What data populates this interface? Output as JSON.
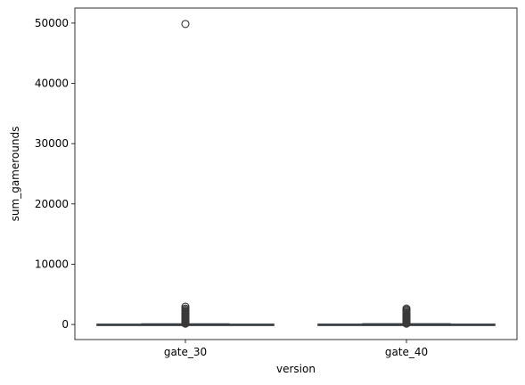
{
  "chart_data": {
    "type": "box",
    "title": "",
    "xlabel": "version",
    "ylabel": "sum_gamerounds",
    "categories": [
      "gate_30",
      "gate_40"
    ],
    "ylim": [
      -2500,
      52500
    ],
    "yticks": [
      0,
      10000,
      20000,
      30000,
      40000,
      50000
    ],
    "grid": false,
    "legend": "none",
    "boxes": [
      {
        "category": "gate_30",
        "q1": 5,
        "median": 17,
        "q3": 50,
        "whisker_low": 0,
        "whisker_high": 118,
        "outliers": [
          49854,
          2961,
          2640,
          2438,
          2251,
          2156,
          2124,
          2063,
          1906,
          1774,
          1700,
          1600,
          1500,
          1400,
          1300,
          1200,
          1100,
          1000,
          900,
          800,
          700,
          600,
          500,
          420,
          350,
          280,
          220,
          170,
          130
        ]
      },
      {
        "category": "gate_40",
        "q1": 5,
        "median": 16,
        "q3": 52,
        "whisker_low": 0,
        "whisker_high": 122,
        "outliers": [
          2640,
          2438,
          2294,
          2100,
          1950,
          1800,
          1650,
          1500,
          1400,
          1300,
          1200,
          1100,
          1000,
          900,
          800,
          700,
          600,
          500,
          420,
          350,
          280,
          220,
          170,
          135
        ]
      }
    ],
    "colors": {
      "box_face": "#1f77b4",
      "box_edge": "#3a3a3a",
      "outlier_edge": "#3a3a3a",
      "axes": "#000000"
    }
  }
}
